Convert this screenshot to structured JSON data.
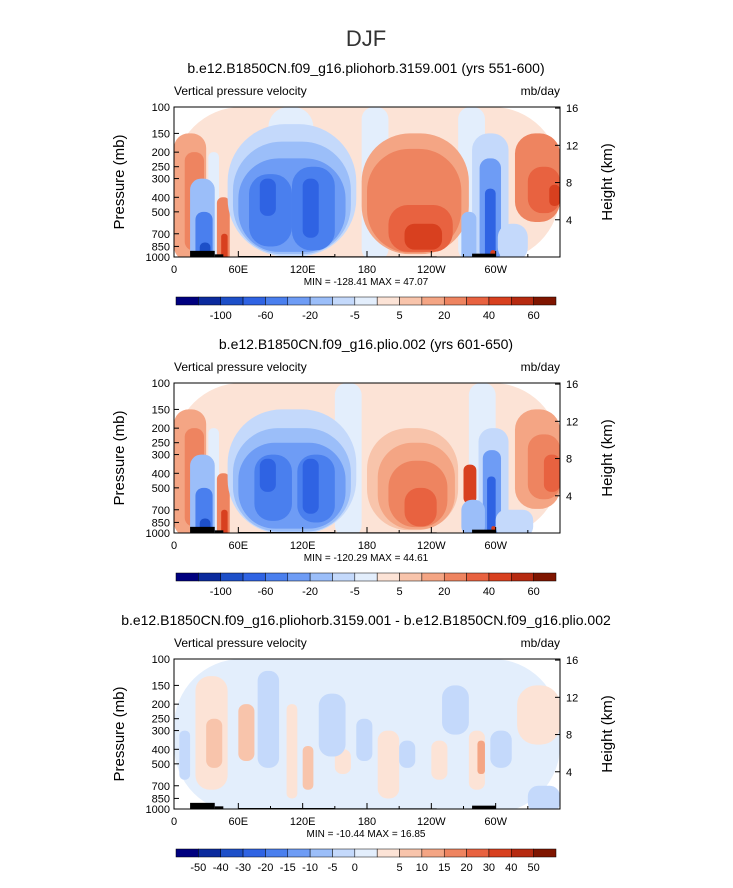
{
  "title": "DJF",
  "chart_data": [
    {
      "type": "heatmap",
      "title": "b.e12.B1850CN.f09_g16.pliohorb.3159.001 (yrs 551-600)",
      "left_label": "Vertical pressure velocity",
      "right_label": "mb/day",
      "ylabel": "Pressure (mb)",
      "ylabel_right": "Height (km)",
      "xticks": [
        "0",
        "60E",
        "120E",
        "180",
        "120W",
        "60W"
      ],
      "yticks": [
        "100",
        "150",
        "200",
        "250",
        "300",
        "400",
        "500",
        "700",
        "850",
        "1000"
      ],
      "yticks_right": [
        "16",
        "12",
        "8",
        "4"
      ],
      "stats": "MIN = -128.41   MAX =  47.07",
      "colorbar_labels": [
        "-100",
        "-60",
        "-20",
        "-5",
        "5",
        "20",
        "40",
        "60"
      ],
      "colors": [
        "#00007f",
        "#0b2a9d",
        "#1d4fc8",
        "#2f63e3",
        "#4a7fee",
        "#6e9cf5",
        "#9bbef9",
        "#c4d9fb",
        "#e3eefc",
        "#fce3d6",
        "#f8c4ab",
        "#f4a584",
        "#ee8460",
        "#e86240",
        "#d8401f",
        "#b62a10",
        "#7f1500"
      ],
      "ylim_mb": [
        100,
        1000
      ],
      "xlim_lon": [
        0,
        360
      ]
    },
    {
      "type": "heatmap",
      "title": "b.e12.B1850CN.f09_g16.plio.002 (yrs 601-650)",
      "left_label": "Vertical pressure velocity",
      "right_label": "mb/day",
      "ylabel": "Pressure (mb)",
      "ylabel_right": "Height (km)",
      "xticks": [
        "0",
        "60E",
        "120E",
        "180",
        "120W",
        "60W"
      ],
      "yticks": [
        "100",
        "150",
        "200",
        "250",
        "300",
        "400",
        "500",
        "700",
        "850",
        "1000"
      ],
      "yticks_right": [
        "16",
        "12",
        "8",
        "4"
      ],
      "stats": "MIN = -120.29   MAX =  44.61",
      "colorbar_labels": [
        "-100",
        "-60",
        "-20",
        "-5",
        "5",
        "20",
        "40",
        "60"
      ],
      "colors": [
        "#00007f",
        "#0b2a9d",
        "#1d4fc8",
        "#2f63e3",
        "#4a7fee",
        "#6e9cf5",
        "#9bbef9",
        "#c4d9fb",
        "#e3eefc",
        "#fce3d6",
        "#f8c4ab",
        "#f4a584",
        "#ee8460",
        "#e86240",
        "#d8401f",
        "#b62a10",
        "#7f1500"
      ],
      "ylim_mb": [
        100,
        1000
      ],
      "xlim_lon": [
        0,
        360
      ]
    },
    {
      "type": "heatmap",
      "title": "b.e12.B1850CN.f09_g16.pliohorb.3159.001 - b.e12.B1850CN.f09_g16.plio.002",
      "left_label": "Vertical pressure velocity",
      "right_label": "mb/day",
      "ylabel": "Pressure (mb)",
      "ylabel_right": "Height (km)",
      "xticks": [
        "0",
        "60E",
        "120E",
        "180",
        "120W",
        "60W"
      ],
      "yticks": [
        "100",
        "150",
        "200",
        "250",
        "300",
        "400",
        "500",
        "700",
        "850",
        "1000"
      ],
      "yticks_right": [
        "16",
        "12",
        "8",
        "4"
      ],
      "stats": "MIN = -10.44   MAX =  16.85",
      "colorbar_labels": [
        "-50",
        "-40",
        "-30",
        "-20",
        "-15",
        "-10",
        "-5",
        "0",
        "5",
        "10",
        "15",
        "20",
        "30",
        "40",
        "50"
      ],
      "colors": [
        "#00007f",
        "#0b2a9d",
        "#1d4fc8",
        "#2f63e3",
        "#4a7fee",
        "#6e9cf5",
        "#9bbef9",
        "#c4d9fb",
        "#e3eefc",
        "#fce3d6",
        "#f8c4ab",
        "#f4a584",
        "#ee8460",
        "#e86240",
        "#d8401f",
        "#b62a10",
        "#7f1500"
      ],
      "ylim_mb": [
        100,
        1000
      ],
      "xlim_lon": [
        0,
        360
      ]
    }
  ]
}
